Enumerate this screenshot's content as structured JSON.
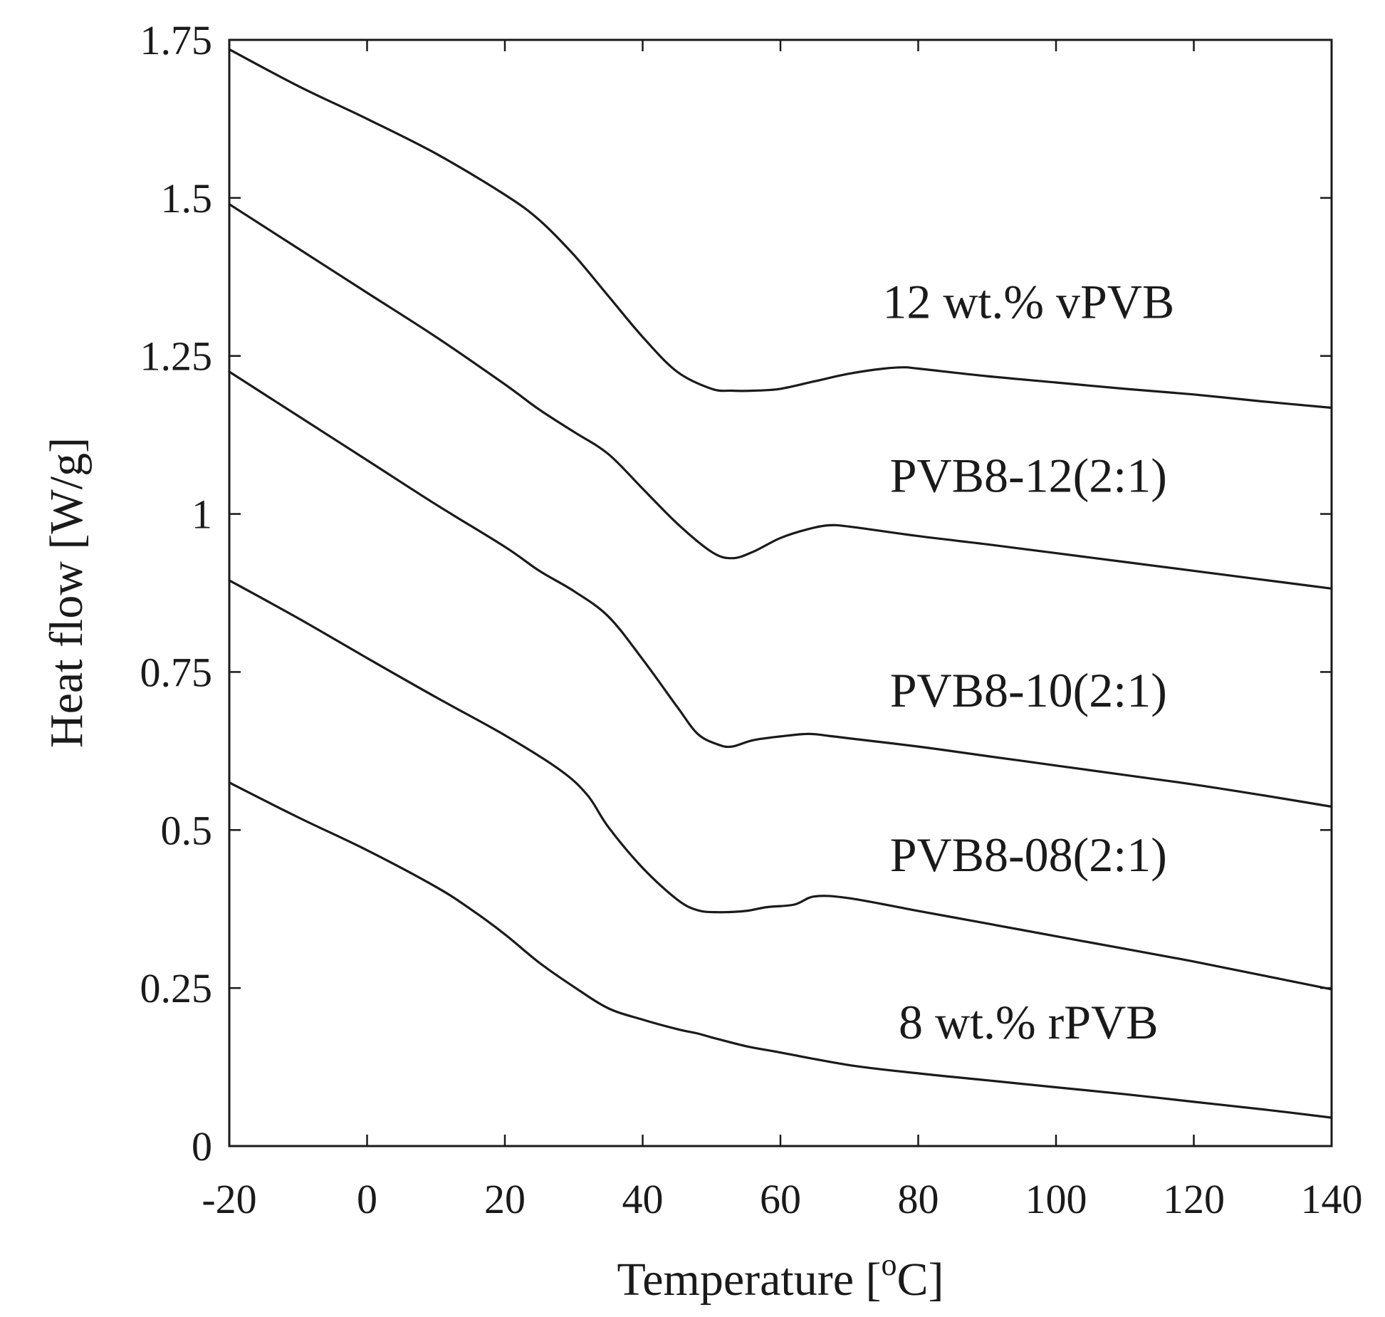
{
  "chart_data": {
    "type": "line",
    "title": "",
    "xlabel": "Temperature [",
    "xlabel_sup": "o",
    "xlabel_unit": "C]",
    "ylabel": "Heat flow [W/g]",
    "xlim": [
      -20,
      140
    ],
    "ylim": [
      0,
      1.75
    ],
    "grid": false,
    "xticks": [
      {
        "value": -20,
        "label": "-20"
      },
      {
        "value": 0,
        "label": "0"
      },
      {
        "value": 20,
        "label": "20"
      },
      {
        "value": 40,
        "label": "40"
      },
      {
        "value": 60,
        "label": "60"
      },
      {
        "value": 80,
        "label": "80"
      },
      {
        "value": 100,
        "label": "100"
      },
      {
        "value": 120,
        "label": "120"
      },
      {
        "value": 140,
        "label": "140"
      }
    ],
    "yticks": [
      {
        "value": 0,
        "label": "0"
      },
      {
        "value": 0.25,
        "label": "0.25"
      },
      {
        "value": 0.5,
        "label": "0.5"
      },
      {
        "value": 0.75,
        "label": "0.75"
      },
      {
        "value": 1.0,
        "label": "1"
      },
      {
        "value": 1.25,
        "label": "1.25"
      },
      {
        "value": 1.5,
        "label": "1.5"
      },
      {
        "value": 1.75,
        "label": "1.75"
      }
    ],
    "series": [
      {
        "name": "12 wt.% vPVB",
        "label_pos": {
          "x": 96,
          "y": 1.31
        },
        "x": [
          -20,
          -10,
          0,
          10,
          20,
          25,
          30,
          35,
          40,
          45,
          50,
          53,
          56,
          60,
          65,
          70,
          75,
          78,
          80,
          90,
          100,
          110,
          120,
          130,
          140
        ],
        "y": [
          1.735,
          1.677,
          1.625,
          1.57,
          1.505,
          1.465,
          1.41,
          1.345,
          1.28,
          1.225,
          1.198,
          1.195,
          1.195,
          1.198,
          1.21,
          1.222,
          1.23,
          1.232,
          1.23,
          1.218,
          1.208,
          1.198,
          1.189,
          1.178,
          1.168
        ]
      },
      {
        "name": "PVB8-12(2:1)",
        "label_pos": {
          "x": 96,
          "y": 1.035
        },
        "x": [
          -20,
          -10,
          0,
          10,
          20,
          25,
          30,
          35,
          40,
          45,
          50,
          53,
          56,
          60,
          64,
          67,
          70,
          80,
          90,
          100,
          110,
          120,
          130,
          140
        ],
        "y": [
          1.49,
          1.42,
          1.35,
          1.28,
          1.205,
          1.165,
          1.13,
          1.095,
          1.04,
          0.985,
          0.94,
          0.93,
          0.94,
          0.962,
          0.976,
          0.982,
          0.98,
          0.965,
          0.952,
          0.938,
          0.924,
          0.91,
          0.896,
          0.882
        ]
      },
      {
        "name": "PVB8-10(2:1)",
        "label_pos": {
          "x": 96,
          "y": 0.695
        },
        "x": [
          -20,
          -10,
          0,
          10,
          20,
          25,
          30,
          35,
          40,
          45,
          48,
          51,
          53,
          56,
          60,
          64,
          67,
          70,
          80,
          90,
          100,
          110,
          120,
          130,
          140
        ],
        "y": [
          1.225,
          1.155,
          1.085,
          1.015,
          0.948,
          0.91,
          0.878,
          0.838,
          0.77,
          0.695,
          0.652,
          0.635,
          0.632,
          0.642,
          0.648,
          0.652,
          0.649,
          0.645,
          0.632,
          0.617,
          0.602,
          0.587,
          0.572,
          0.555,
          0.537
        ]
      },
      {
        "name": "PVB8-08(2:1)",
        "label_pos": {
          "x": 96,
          "y": 0.435
        },
        "x": [
          -20,
          -10,
          0,
          10,
          20,
          28,
          32,
          35,
          40,
          45,
          48,
          51,
          55,
          58,
          62,
          65,
          70,
          80,
          90,
          100,
          110,
          120,
          130,
          140
        ],
        "y": [
          0.895,
          0.835,
          0.772,
          0.71,
          0.65,
          0.595,
          0.555,
          0.505,
          0.44,
          0.39,
          0.373,
          0.37,
          0.372,
          0.378,
          0.382,
          0.395,
          0.392,
          0.372,
          0.352,
          0.332,
          0.312,
          0.292,
          0.27,
          0.248
        ]
      },
      {
        "name": "8 wt.% rPVB",
        "label_pos": {
          "x": 96,
          "y": 0.17
        },
        "x": [
          -20,
          -10,
          0,
          10,
          15,
          20,
          25,
          30,
          35,
          40,
          45,
          48,
          50,
          55,
          60,
          70,
          80,
          90,
          100,
          110,
          120,
          130,
          140
        ],
        "y": [
          0.575,
          0.52,
          0.468,
          0.41,
          0.375,
          0.335,
          0.29,
          0.252,
          0.218,
          0.2,
          0.185,
          0.178,
          0.172,
          0.158,
          0.148,
          0.128,
          0.115,
          0.104,
          0.093,
          0.082,
          0.07,
          0.058,
          0.045
        ]
      }
    ]
  }
}
